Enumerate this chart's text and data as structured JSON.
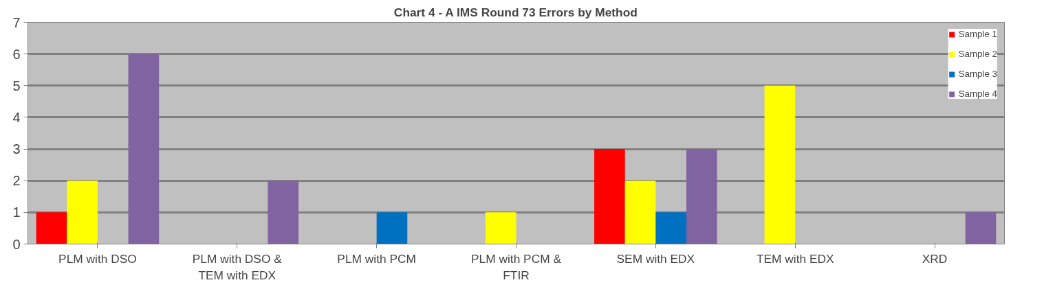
{
  "chart_data": {
    "type": "bar",
    "title": "Chart 4 - A IMS Round 73 Errors by Method",
    "categories": [
      "PLM with DSO",
      "PLM with DSO & TEM with EDX",
      "PLM with PCM",
      "PLM with PCM & FTIR",
      "SEM with EDX",
      "TEM with EDX",
      "XRD"
    ],
    "series": [
      {
        "name": "Sample 1",
        "color": "#ff0000",
        "values": [
          1,
          0,
          0,
          0,
          3,
          0,
          0
        ]
      },
      {
        "name": "Sample 2",
        "color": "#ffff00",
        "values": [
          2,
          0,
          0,
          1,
          2,
          5,
          0
        ]
      },
      {
        "name": "Sample 3",
        "color": "#0070c0",
        "values": [
          0,
          0,
          1,
          0,
          1,
          0,
          0
        ]
      },
      {
        "name": "Sample 4",
        "color": "#8064a2",
        "values": [
          6,
          2,
          0,
          0,
          3,
          0,
          1
        ]
      }
    ],
    "ylim": [
      0,
      7
    ],
    "yticks": [
      0,
      1,
      2,
      3,
      4,
      5,
      6,
      7
    ],
    "grid": "y",
    "legend": "top right"
  }
}
